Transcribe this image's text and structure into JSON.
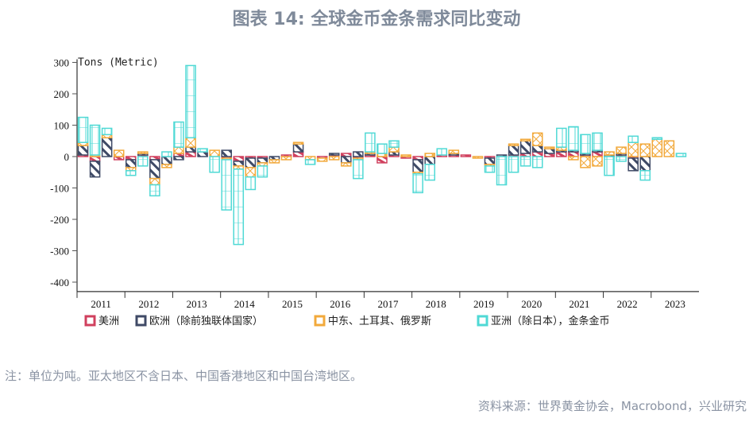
{
  "title": "图表 14: 全球金币金条需求同比变动",
  "note": "注：单位为吨。亚太地区不含日本、中国香港地区和中国台湾地区。",
  "source": "资料来源：世界黄金协会，Macrobond，兴业研究",
  "chart_data": {
    "type": "bar",
    "stacked": true,
    "title": "图表 14: 全球金币金条需求同比变动",
    "ylabel": "Tons (Metric)",
    "ylim": [
      -400,
      300
    ],
    "yticks": [
      300,
      200,
      100,
      0,
      -100,
      -200,
      -300,
      -400
    ],
    "xlabel": "",
    "years": [
      "2011",
      "2012",
      "2013",
      "2014",
      "2015",
      "2016",
      "2017",
      "2018",
      "2019",
      "2020",
      "2021",
      "2022",
      "2023"
    ],
    "quarters_per_year": 4,
    "legend_position": "bottom",
    "series": [
      {
        "name": "美洲",
        "color": "#d0405e",
        "pattern": "diagonal-light",
        "values": [
          5,
          -15,
          0,
          -10,
          -10,
          5,
          -10,
          0,
          10,
          15,
          0,
          0,
          -5,
          -15,
          -5,
          -5,
          0,
          5,
          15,
          0,
          -5,
          5,
          10,
          -5,
          5,
          -20,
          5,
          -5,
          -10,
          0,
          5,
          5,
          5,
          0,
          -5,
          0,
          5,
          10,
          15,
          10,
          15,
          15,
          5,
          15,
          0,
          5,
          -5,
          0,
          0,
          0,
          0,
          0
        ]
      },
      {
        "name": "欧洲（除前独联体国家）",
        "color": "#3f4a66",
        "pattern": "diagonal",
        "values": [
          30,
          -50,
          60,
          0,
          -25,
          5,
          -60,
          -25,
          -10,
          15,
          15,
          0,
          20,
          -15,
          -30,
          -15,
          -10,
          0,
          25,
          0,
          0,
          5,
          -20,
          15,
          5,
          0,
          10,
          0,
          -40,
          -25,
          0,
          5,
          0,
          0,
          -20,
          5,
          30,
          40,
          20,
          15,
          5,
          5,
          5,
          5,
          5,
          5,
          -40,
          -45,
          0,
          0,
          0,
          0
        ]
      },
      {
        "name": "中东、土耳其、俄罗斯",
        "color": "#f2a93b",
        "pattern": "x-cross",
        "values": [
          10,
          5,
          10,
          20,
          -10,
          5,
          -20,
          -10,
          20,
          30,
          0,
          20,
          -5,
          -10,
          -30,
          -10,
          -10,
          -10,
          5,
          -10,
          -10,
          -10,
          -10,
          -5,
          5,
          10,
          15,
          5,
          -5,
          10,
          0,
          10,
          0,
          -5,
          -5,
          0,
          5,
          5,
          40,
          5,
          10,
          -10,
          -35,
          -30,
          10,
          20,
          45,
          40,
          55,
          50,
          0,
          0
        ]
      },
      {
        "name": "亚洲（除日本），金条金币",
        "color": "#4fd9d5",
        "pattern": "grid",
        "values": [
          80,
          95,
          20,
          0,
          -15,
          -30,
          -35,
          15,
          80,
          230,
          10,
          -50,
          -160,
          -240,
          -40,
          -35,
          0,
          0,
          0,
          -15,
          0,
          0,
          0,
          -60,
          60,
          30,
          20,
          0,
          -60,
          -50,
          20,
          0,
          0,
          0,
          -20,
          -90,
          -50,
          -30,
          -35,
          0,
          60,
          75,
          60,
          55,
          -60,
          -15,
          20,
          -30,
          5,
          0,
          10,
          0
        ]
      }
    ]
  }
}
